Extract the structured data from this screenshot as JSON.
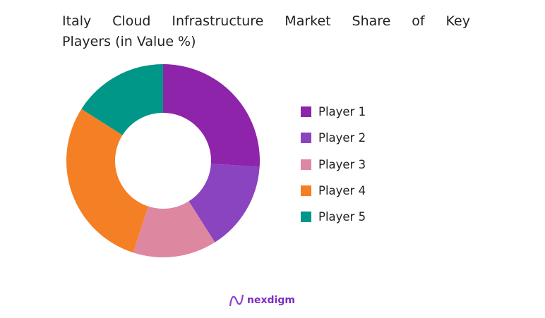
{
  "title_line1": "Italy Cloud Infrastructure Market Share of Key",
  "title_line2": "Players (in Value %)",
  "chart_data": {
    "type": "pie",
    "variant": "donut",
    "title": "Italy Cloud Infrastructure Market Share of Key Players (in Value %)",
    "categories": [
      "Player 1",
      "Player 2",
      "Player 3",
      "Player 4",
      "Player 5"
    ],
    "values": [
      26,
      15,
      14,
      29,
      16
    ],
    "colors": [
      "#8e24aa",
      "#8a44bf",
      "#de87a1",
      "#f47f24",
      "#009688"
    ],
    "legend_position": "right",
    "start_angle": "12 o'clock, clockwise"
  },
  "legend": [
    {
      "label": "Player 1",
      "color": "#8e24aa"
    },
    {
      "label": "Player 2",
      "color": "#8a44bf"
    },
    {
      "label": "Player 3",
      "color": "#de87a1"
    },
    {
      "label": "Player 4",
      "color": "#f47f24"
    },
    {
      "label": "Player 5",
      "color": "#009688"
    }
  ],
  "logo": {
    "text": "nexdigm"
  }
}
